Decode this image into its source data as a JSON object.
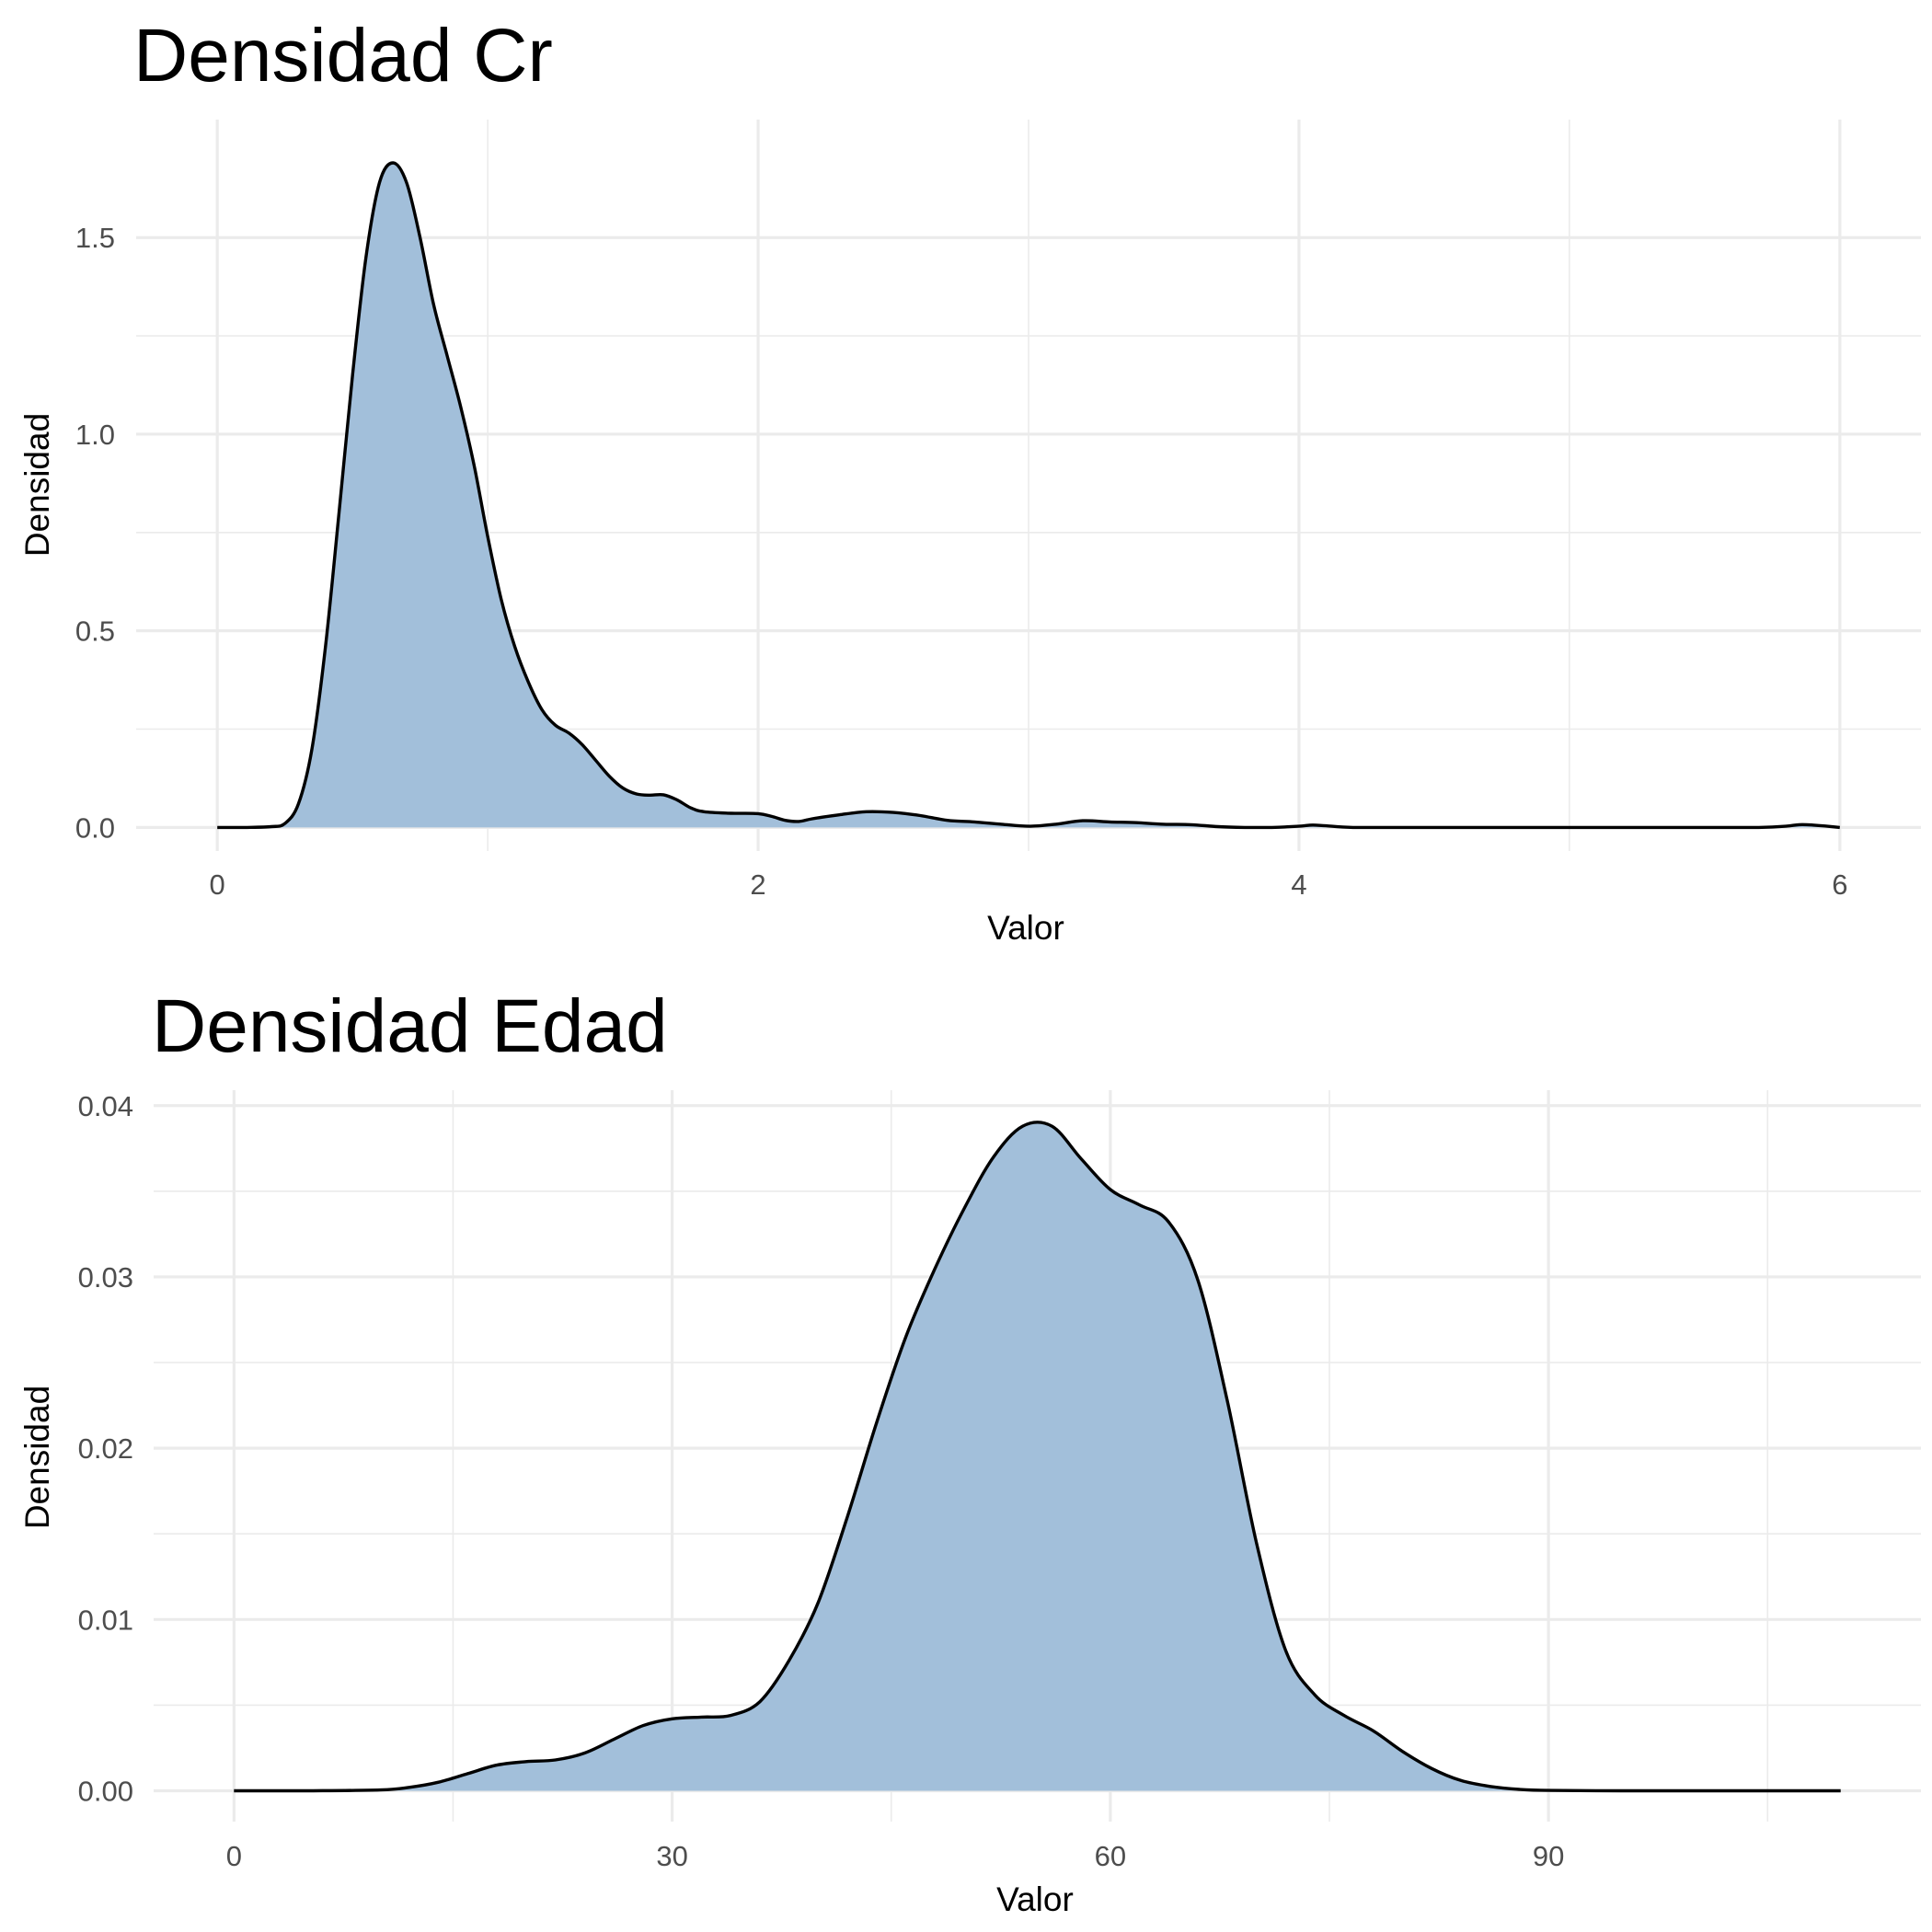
{
  "chart_data": [
    {
      "type": "area",
      "title": "Densidad Cr",
      "xlabel": "Valor",
      "ylabel": "Densidad",
      "xlim": [
        -0.3,
        6.3
      ],
      "ylim": [
        -0.06,
        1.8
      ],
      "x_ticks": [
        0,
        2,
        4,
        6
      ],
      "x_tick_labels": [
        "0",
        "2",
        "4",
        "6"
      ],
      "x_minor_ticks": [
        1,
        3,
        5
      ],
      "y_ticks": [
        0.0,
        0.5,
        1.0,
        1.5
      ],
      "y_tick_labels": [
        "0.0",
        "0.5",
        "1.0",
        "1.5"
      ],
      "y_minor_ticks": [
        0.25,
        0.75,
        1.25
      ],
      "grid": true,
      "fill_color": "#a2bfda",
      "line_color": "#000000",
      "x": [
        0,
        0.1,
        0.2,
        0.25,
        0.3,
        0.35,
        0.4,
        0.45,
        0.5,
        0.55,
        0.6,
        0.65,
        0.7,
        0.75,
        0.8,
        0.85,
        0.9,
        0.95,
        1.0,
        1.05,
        1.1,
        1.15,
        1.2,
        1.25,
        1.3,
        1.35,
        1.4,
        1.45,
        1.5,
        1.55,
        1.6,
        1.65,
        1.7,
        1.75,
        1.8,
        1.9,
        2.0,
        2.05,
        2.1,
        2.15,
        2.2,
        2.3,
        2.4,
        2.5,
        2.6,
        2.7,
        2.8,
        2.9,
        3.0,
        3.1,
        3.2,
        3.3,
        3.4,
        3.5,
        3.6,
        3.7,
        3.8,
        3.9,
        4.0,
        4.05,
        4.1,
        4.2,
        4.4,
        5.0,
        5.5,
        5.7,
        5.8,
        5.85,
        5.9,
        6.0
      ],
      "y": [
        0.0,
        0.0,
        0.002,
        0.01,
        0.06,
        0.2,
        0.46,
        0.8,
        1.15,
        1.45,
        1.64,
        1.69,
        1.64,
        1.5,
        1.33,
        1.2,
        1.07,
        0.92,
        0.74,
        0.58,
        0.46,
        0.37,
        0.3,
        0.26,
        0.24,
        0.21,
        0.17,
        0.13,
        0.1,
        0.085,
        0.082,
        0.083,
        0.07,
        0.05,
        0.04,
        0.036,
        0.035,
        0.028,
        0.018,
        0.015,
        0.022,
        0.032,
        0.04,
        0.038,
        0.03,
        0.018,
        0.014,
        0.008,
        0.003,
        0.008,
        0.017,
        0.014,
        0.012,
        0.008,
        0.007,
        0.002,
        0.0,
        0.0,
        0.003,
        0.006,
        0.004,
        0.0,
        0.0,
        0.0,
        0.0,
        0.0,
        0.003,
        0.007,
        0.006,
        0.0
      ]
    },
    {
      "type": "area",
      "title": "Densidad Edad",
      "xlabel": "Valor",
      "ylabel": "Densidad",
      "xlim": [
        -5.5,
        115.5
      ],
      "ylim": [
        -0.0018,
        0.0409
      ],
      "x_ticks": [
        0,
        30,
        60,
        90
      ],
      "x_tick_labels": [
        "0",
        "30",
        "60",
        "90"
      ],
      "x_minor_ticks": [
        15,
        45,
        75,
        105
      ],
      "y_ticks": [
        0.0,
        0.01,
        0.02,
        0.03,
        0.04
      ],
      "y_tick_labels": [
        "0.00",
        "0.01",
        "0.02",
        "0.03",
        "0.04"
      ],
      "y_minor_ticks": [
        0.005,
        0.015,
        0.025,
        0.035
      ],
      "grid": true,
      "fill_color": "#a2bfda",
      "line_color": "#000000",
      "x": [
        0,
        5,
        10,
        12,
        14,
        16,
        18,
        20,
        22,
        24,
        26,
        28,
        30,
        32,
        34,
        36,
        38,
        40,
        42,
        44,
        46,
        48,
        50,
        52,
        54,
        56,
        58,
        60,
        62,
        64,
        66,
        68,
        70,
        72,
        74,
        76,
        78,
        80,
        82,
        84,
        86,
        88,
        90,
        95,
        100,
        110
      ],
      "y": [
        0.0,
        0.0,
        5e-05,
        0.0002,
        0.0005,
        0.001,
        0.0015,
        0.0017,
        0.0018,
        0.0022,
        0.003,
        0.0038,
        0.0042,
        0.0043,
        0.0044,
        0.0052,
        0.0076,
        0.011,
        0.016,
        0.0215,
        0.0265,
        0.0305,
        0.034,
        0.037,
        0.0388,
        0.0388,
        0.0369,
        0.0351,
        0.0342,
        0.0332,
        0.0298,
        0.0228,
        0.0145,
        0.0082,
        0.0056,
        0.0044,
        0.0035,
        0.0023,
        0.0013,
        0.0006,
        0.00025,
        8e-05,
        2e-05,
        0.0,
        0.0,
        0.0
      ]
    }
  ]
}
